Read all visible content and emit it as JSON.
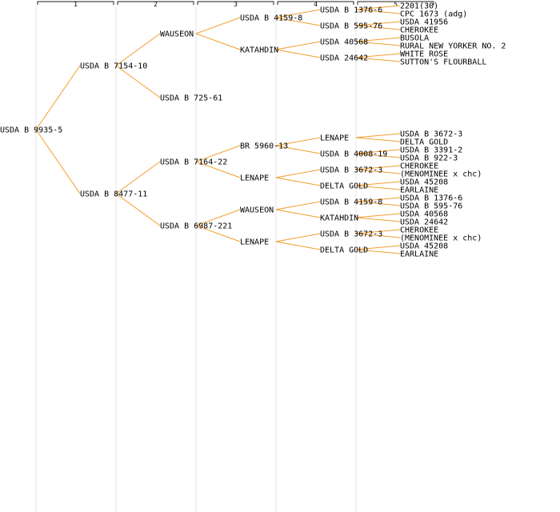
{
  "colors": {
    "edge": "#f39c2b",
    "guide": "#e6e6e6",
    "header": "#222222",
    "text": "#000000"
  },
  "generations": [
    "1",
    "2",
    "3",
    "4",
    "5"
  ],
  "tree": {
    "label": "USDA B 9935-5",
    "children": [
      {
        "label": "USDA B 7154-10",
        "children": [
          {
            "label": "WAUSEON",
            "children": [
              {
                "label": "USDA B 4159-8",
                "children": [
                  {
                    "label": "USDA B 1376-6",
                    "children": [
                      {
                        "label": "2201(30)"
                      },
                      {
                        "label": "CPC 1673 (adg)"
                      }
                    ]
                  },
                  {
                    "label": "USDA B 595-76",
                    "children": [
                      {
                        "label": "USDA 41956"
                      },
                      {
                        "label": "CHEROKEE"
                      }
                    ]
                  }
                ]
              },
              {
                "label": "KATAHDIN",
                "children": [
                  {
                    "label": "USDA 40568",
                    "children": [
                      {
                        "label": "BUSOLA"
                      },
                      {
                        "label": "RURAL NEW YORKER NO. 2"
                      }
                    ]
                  },
                  {
                    "label": "USDA 24642",
                    "children": [
                      {
                        "label": "WHITE ROSE"
                      },
                      {
                        "label": "SUTTON'S FLOURBALL"
                      }
                    ]
                  }
                ]
              }
            ]
          },
          {
            "label": "USDA B 725-61"
          }
        ]
      },
      {
        "label": "USDA B 8477-11",
        "children": [
          {
            "label": "USDA B 7164-22",
            "children": [
              {
                "label": "BR 5960-13",
                "children": [
                  {
                    "label": "LENAPE",
                    "children": [
                      {
                        "label": "USDA B 3672-3"
                      },
                      {
                        "label": "DELTA GOLD"
                      }
                    ]
                  },
                  {
                    "label": "USDA B 4008-19",
                    "children": [
                      {
                        "label": "USDA B 3391-2"
                      },
                      {
                        "label": "USDA B 922-3"
                      }
                    ]
                  }
                ]
              },
              {
                "label": "LENAPE",
                "children": [
                  {
                    "label": "USDA B 3672-3",
                    "children": [
                      {
                        "label": "CHEROKEE"
                      },
                      {
                        "label": "(MENOMINEE x chc)"
                      }
                    ]
                  },
                  {
                    "label": "DELTA GOLD",
                    "children": [
                      {
                        "label": "USDA 45208"
                      },
                      {
                        "label": "EARLAINE"
                      }
                    ]
                  }
                ]
              }
            ]
          },
          {
            "label": "USDA B 6987-221",
            "children": [
              {
                "label": "WAUSEON",
                "children": [
                  {
                    "label": "USDA B 4159-8",
                    "children": [
                      {
                        "label": "USDA B 1376-6"
                      },
                      {
                        "label": "USDA B 595-76"
                      }
                    ]
                  },
                  {
                    "label": "KATAHDIN",
                    "children": [
                      {
                        "label": "USDA 40568"
                      },
                      {
                        "label": "USDA 24642"
                      }
                    ]
                  }
                ]
              },
              {
                "label": "LENAPE",
                "children": [
                  {
                    "label": "USDA B 3672-3",
                    "children": [
                      {
                        "label": "CHEROKEE"
                      },
                      {
                        "label": "(MENOMINEE x chc)"
                      }
                    ]
                  },
                  {
                    "label": "DELTA GOLD",
                    "children": [
                      {
                        "label": "USDA 45208"
                      },
                      {
                        "label": "EARLAINE"
                      }
                    ]
                  }
                ]
              }
            ]
          }
        ]
      }
    ]
  }
}
